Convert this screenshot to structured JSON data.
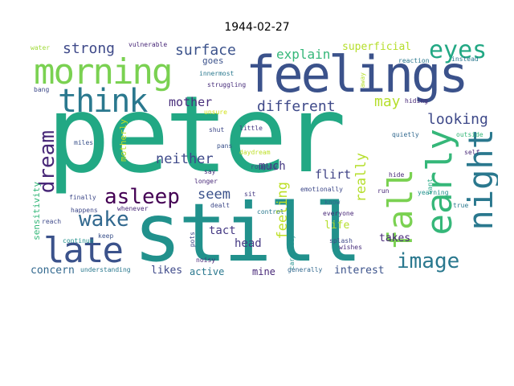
{
  "title": "1944-02-27",
  "words": [
    {
      "text": "peter",
      "color": "#22a884"
    },
    {
      "text": "still",
      "color": "#21918c"
    },
    {
      "text": "feelings",
      "color": "#3b528b"
    },
    {
      "text": "morning",
      "color": "#7ad151"
    },
    {
      "text": "think",
      "color": "#2a788e"
    },
    {
      "text": "late",
      "color": "#3b528b"
    },
    {
      "text": "fall",
      "color": "#7ad151"
    },
    {
      "text": "early",
      "color": "#35b779"
    },
    {
      "text": "night",
      "color": "#2a788e"
    },
    {
      "text": "eyes",
      "color": "#22a884"
    },
    {
      "text": "image",
      "color": "#2a788e"
    },
    {
      "text": "asleep",
      "color": "#440154"
    },
    {
      "text": "wake",
      "color": "#31688e"
    },
    {
      "text": "dream",
      "color": "#482878"
    },
    {
      "text": "strong",
      "color": "#3e4989"
    },
    {
      "text": "surface",
      "color": "#3b528b"
    },
    {
      "text": "explain",
      "color": "#35b779"
    },
    {
      "text": "superficial",
      "color": "#b5de2b"
    },
    {
      "text": "different",
      "color": "#3e4989"
    },
    {
      "text": "looking",
      "color": "#3e4989"
    },
    {
      "text": "may",
      "color": "#b5de2b"
    },
    {
      "text": "mother",
      "color": "#472d7b"
    },
    {
      "text": "neither",
      "color": "#3e4989"
    },
    {
      "text": "seem",
      "color": "#3b528b"
    },
    {
      "text": "much",
      "color": "#443983"
    },
    {
      "text": "really",
      "color": "#b5de2b"
    },
    {
      "text": "feeling",
      "color": "#bddf26"
    },
    {
      "text": "flirt",
      "color": "#414487"
    },
    {
      "text": "head",
      "color": "#443983"
    },
    {
      "text": "tact",
      "color": "#443983"
    },
    {
      "text": "life",
      "color": "#b5de2b"
    },
    {
      "text": "takes",
      "color": "#482878"
    },
    {
      "text": "interest",
      "color": "#3b528b"
    },
    {
      "text": "concern",
      "color": "#31688e"
    },
    {
      "text": "likes",
      "color": "#3e4989"
    },
    {
      "text": "active",
      "color": "#2a788e"
    },
    {
      "text": "mine",
      "color": "#482878"
    },
    {
      "text": "sensitivity",
      "color": "#35b779"
    },
    {
      "text": "motherly",
      "color": "#bddf26"
    },
    {
      "text": "goes",
      "color": "#3b528b"
    },
    {
      "text": "vulnerable",
      "color": "#482878"
    },
    {
      "text": "water",
      "color": "#a0da39"
    },
    {
      "text": "bang",
      "color": "#3e4989"
    },
    {
      "text": "innermost",
      "color": "#2a788e"
    },
    {
      "text": "struggling",
      "color": "#472d7b"
    },
    {
      "text": "reaction",
      "color": "#2a788e"
    },
    {
      "text": "instead",
      "color": "#2a788e"
    },
    {
      "text": "hiding",
      "color": "#482878"
    },
    {
      "text": "away",
      "color": "#b5de2b"
    },
    {
      "text": "unsure",
      "color": "#d2e21b"
    },
    {
      "text": "shut",
      "color": "#3e4989"
    },
    {
      "text": "little",
      "color": "#443983"
    },
    {
      "text": "quietly",
      "color": "#31688e"
    },
    {
      "text": "outside",
      "color": "#35b779"
    },
    {
      "text": "self",
      "color": "#482878"
    },
    {
      "text": "miles",
      "color": "#3b528b"
    },
    {
      "text": "pans",
      "color": "#3b528b"
    },
    {
      "text": "daydream",
      "color": "#bddf26"
    },
    {
      "text": "say",
      "color": "#472d7b"
    },
    {
      "text": "roughly",
      "color": "#3e4989"
    },
    {
      "text": "longer",
      "color": "#482878"
    },
    {
      "text": "sit",
      "color": "#443983"
    },
    {
      "text": "emotionally",
      "color": "#3e4989"
    },
    {
      "text": "run",
      "color": "#482878"
    },
    {
      "text": "hide",
      "color": "#482878"
    },
    {
      "text": "want",
      "color": "#22a884"
    },
    {
      "text": "finally",
      "color": "#3e4989"
    },
    {
      "text": "happens",
      "color": "#3e4989"
    },
    {
      "text": "whenever",
      "color": "#482878"
    },
    {
      "text": "dealt",
      "color": "#3e4989"
    },
    {
      "text": "control",
      "color": "#2a788e"
    },
    {
      "text": "know",
      "color": "#31688e"
    },
    {
      "text": "everyone",
      "color": "#482878"
    },
    {
      "text": "true",
      "color": "#2a788e"
    },
    {
      "text": "yearning",
      "color": "#21918c"
    },
    {
      "text": "reach",
      "color": "#3e4989"
    },
    {
      "text": "continue",
      "color": "#21918c"
    },
    {
      "text": "keep",
      "color": "#3b528b"
    },
    {
      "text": "pots",
      "color": "#3e4989"
    },
    {
      "text": "carefully",
      "color": "#21918c"
    },
    {
      "text": "splash",
      "color": "#3e4989"
    },
    {
      "text": "wishes",
      "color": "#472d7b"
    },
    {
      "text": "noisy",
      "color": "#482878"
    },
    {
      "text": "understanding",
      "color": "#2a788e"
    },
    {
      "text": "generally",
      "color": "#31688e"
    }
  ]
}
